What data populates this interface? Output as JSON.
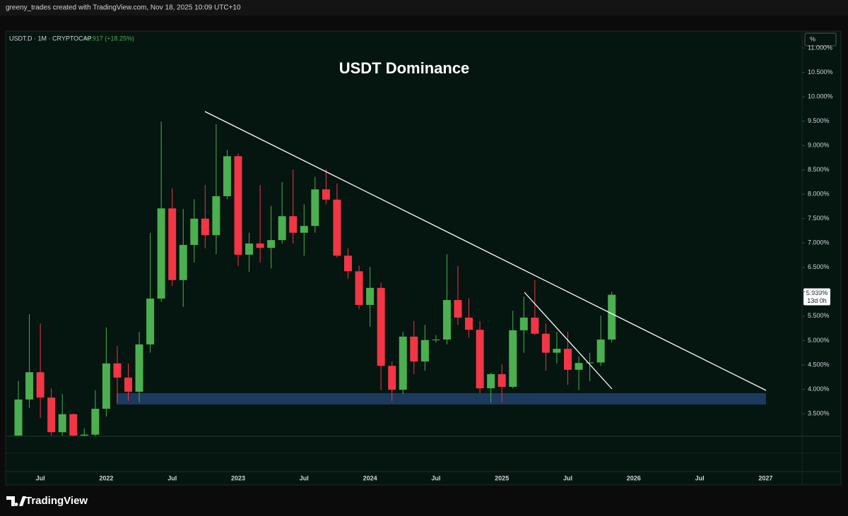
{
  "header": {
    "attribution": "greeny_trades created with TradingView.com, Nov 18, 2025 10:09 UTC+10"
  },
  "footer": {
    "brand": "TradingView"
  },
  "chart_data": {
    "type": "candlestick",
    "title": "USDT Dominance",
    "symbol": "USDT.D · 1M · CRYPTOCAP",
    "change": "+0.917 (+18.25%)",
    "axis_unit": "%",
    "last_label": "5.939%",
    "countdown": "13d 0h",
    "up_color": "#4caf50",
    "down_color": "#f23645",
    "categories": [
      null,
      null,
      "Jul",
      null,
      null,
      null,
      null,
      null,
      "2022",
      null,
      null,
      null,
      null,
      null,
      "Jul",
      null,
      null,
      null,
      null,
      null,
      "2023",
      null,
      null,
      null,
      null,
      null,
      "Jul",
      null,
      null,
      null,
      null,
      null,
      "2024",
      null,
      null,
      null,
      null,
      null,
      "Jul",
      null,
      null,
      null,
      null,
      null,
      "2025",
      null,
      null,
      null,
      null,
      null,
      "Jul",
      null,
      null,
      null,
      null,
      null,
      "2026",
      null,
      null,
      null,
      null,
      null,
      "Jul",
      null,
      null,
      null,
      null,
      null,
      "2027"
    ],
    "open": [
      3.05,
      3.79,
      4.35,
      3.83,
      3.12,
      3.49,
      3.05,
      3.07,
      3.6,
      4.53,
      4.24,
      3.95,
      4.92,
      5.86,
      7.71,
      6.24,
      6.96,
      7.5,
      7.16,
      7.96,
      8.78,
      6.76,
      6.99,
      6.9,
      7.06,
      7.55,
      7.21,
      7.35,
      8.1,
      7.89,
      6.74,
      6.42,
      5.73,
      6.08,
      4.48,
      3.99,
      5.08,
      4.57,
      5.01,
      5.02,
      5.83,
      5.47,
      5.22,
      4.02,
      4.31,
      4.05,
      5.21,
      5.47,
      5.14,
      4.75,
      4.83,
      4.4,
      4.54,
      4.55,
      5.02,
      null,
      null,
      null,
      null,
      null,
      null,
      null,
      null,
      null,
      null,
      null,
      null,
      null,
      null
    ],
    "high": [
      4.17,
      5.54,
      5.35,
      4.02,
      3.9,
      3.5,
      3.2,
      3.98,
      5.27,
      4.89,
      4.53,
      5.18,
      7.21,
      9.49,
      8.12,
      7.7,
      7.9,
      8.19,
      9.44,
      8.91,
      8.83,
      7.21,
      8.19,
      7.76,
      8.25,
      8.51,
      7.79,
      8.36,
      8.51,
      8.22,
      6.89,
      6.54,
      6.51,
      6.19,
      4.57,
      5.18,
      5.4,
      5.32,
      5.11,
      6.77,
      6.53,
      5.87,
      5.4,
      4.34,
      4.51,
      5.61,
      5.9,
      6.24,
      5.35,
      5.18,
      5.18,
      4.67,
      4.75,
      5.51,
      6.0,
      null,
      null,
      null,
      null,
      null,
      null,
      null,
      null,
      null,
      null,
      null,
      null,
      null,
      null
    ],
    "low": [
      3.04,
      3.62,
      3.41,
      3.05,
      3.05,
      3.04,
      3.04,
      3.04,
      3.44,
      3.72,
      3.76,
      3.73,
      4.75,
      5.79,
      6.12,
      5.69,
      6.6,
      6.89,
      6.77,
      7.9,
      6.53,
      6.41,
      6.6,
      6.48,
      6.99,
      6.99,
      6.74,
      7.21,
      7.79,
      6.7,
      6.27,
      5.64,
      5.28,
      3.98,
      3.76,
      3.9,
      4.31,
      4.38,
      4.96,
      4.92,
      5.32,
      5.06,
      3.92,
      3.73,
      3.73,
      4.02,
      4.75,
      5.11,
      4.38,
      4.53,
      4.09,
      3.98,
      4.17,
      4.48,
      4.96,
      null,
      null,
      null,
      null,
      null,
      null,
      null,
      null,
      null,
      null,
      null,
      null,
      null,
      null
    ],
    "close": [
      3.79,
      4.35,
      3.83,
      3.12,
      3.49,
      3.05,
      3.07,
      3.6,
      4.53,
      4.24,
      3.95,
      4.92,
      5.86,
      7.71,
      6.24,
      6.96,
      7.5,
      7.16,
      7.96,
      8.78,
      6.76,
      6.99,
      6.9,
      7.06,
      7.55,
      7.21,
      7.35,
      8.1,
      7.89,
      6.74,
      6.42,
      5.73,
      6.08,
      4.48,
      3.99,
      5.08,
      4.57,
      5.01,
      5.02,
      5.83,
      5.47,
      5.22,
      4.02,
      4.31,
      4.05,
      5.21,
      5.47,
      5.14,
      4.75,
      4.83,
      4.4,
      4.54,
      4.55,
      5.02,
      5.939,
      null,
      null,
      null,
      null,
      null,
      null,
      null,
      null,
      null,
      null,
      null,
      null,
      null,
      null
    ],
    "ylim": [
      3.037,
      11.347
    ],
    "yticks": [
      {
        "value": 3.5,
        "label": "3.500%"
      },
      {
        "value": 4,
        "label": "4.000%"
      },
      {
        "value": 4.5,
        "label": "4.500%"
      },
      {
        "value": 5,
        "label": "5.000%"
      },
      {
        "value": 5.5,
        "label": "5.500%"
      },
      {
        "value": 6,
        "label": "6.000%"
      },
      {
        "value": 6.5,
        "label": "6.500%"
      },
      {
        "value": 7,
        "label": "7.000%"
      },
      {
        "value": 7.5,
        "label": "7.500%"
      },
      {
        "value": 8,
        "label": "8.000%"
      },
      {
        "value": 8.5,
        "label": "8.500%"
      },
      {
        "value": 9,
        "label": "9.000%"
      },
      {
        "value": 9.5,
        "label": "9.500%"
      },
      {
        "value": 10,
        "label": "10.000%"
      },
      {
        "value": 10.5,
        "label": "10.500%"
      },
      {
        "value": 11,
        "label": "11.000%"
      }
    ]
  }
}
